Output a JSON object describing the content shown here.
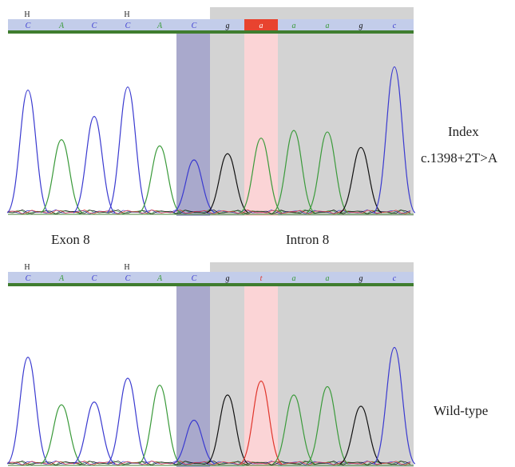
{
  "colors": {
    "A": "#3a9a3a",
    "C": "#3a3ad0",
    "G": "#111111",
    "T": "#e0352b",
    "header_bar": "#c3cdea",
    "baseline_bar": "#3f7d2f",
    "intron_shade": "#d3d3d3",
    "exon_boundary_shade": "#a9a9cc",
    "highlight_shade": "#fbd4d6",
    "mutant_box": "#e8432f"
  },
  "het_marker": "H",
  "labels": {
    "exon": "Exon 8",
    "intron": "Intron 8"
  },
  "panels": [
    {
      "id": "index",
      "title": "Index",
      "variant": "c.1398+2T>A",
      "bases": [
        "C",
        "A",
        "C",
        "C",
        "A",
        "C",
        "g",
        "a",
        "a",
        "a",
        "g",
        "c"
      ],
      "het_positions": [
        0,
        3
      ],
      "highlight_index": 7,
      "highlight_style": "box",
      "peaks": [
        {
          "base": "C",
          "h": 0.78
        },
        {
          "base": "A",
          "h": 0.46
        },
        {
          "base": "C",
          "h": 0.61
        },
        {
          "base": "C",
          "h": 0.8
        },
        {
          "base": "A",
          "h": 0.42
        },
        {
          "base": "C",
          "h": 0.33
        },
        {
          "base": "G",
          "h": 0.37
        },
        {
          "base": "A",
          "h": 0.47
        },
        {
          "base": "A",
          "h": 0.52
        },
        {
          "base": "A",
          "h": 0.51
        },
        {
          "base": "G",
          "h": 0.41
        },
        {
          "base": "C",
          "h": 0.93
        }
      ]
    },
    {
      "id": "wildtype",
      "title": "Wild-type",
      "variant": "",
      "bases": [
        "C",
        "A",
        "C",
        "C",
        "A",
        "C",
        "g",
        "t",
        "a",
        "a",
        "g",
        "c"
      ],
      "het_positions": [
        0,
        3
      ],
      "highlight_index": 7,
      "highlight_style": "text",
      "peaks": [
        {
          "base": "C",
          "h": 0.75
        },
        {
          "base": "A",
          "h": 0.41
        },
        {
          "base": "C",
          "h": 0.43
        },
        {
          "base": "C",
          "h": 0.6
        },
        {
          "base": "A",
          "h": 0.55
        },
        {
          "base": "C",
          "h": 0.3
        },
        {
          "base": "G",
          "h": 0.48
        },
        {
          "base": "T",
          "h": 0.58
        },
        {
          "base": "A",
          "h": 0.48
        },
        {
          "base": "A",
          "h": 0.54
        },
        {
          "base": "G",
          "h": 0.4
        },
        {
          "base": "C",
          "h": 0.82
        }
      ]
    }
  ]
}
